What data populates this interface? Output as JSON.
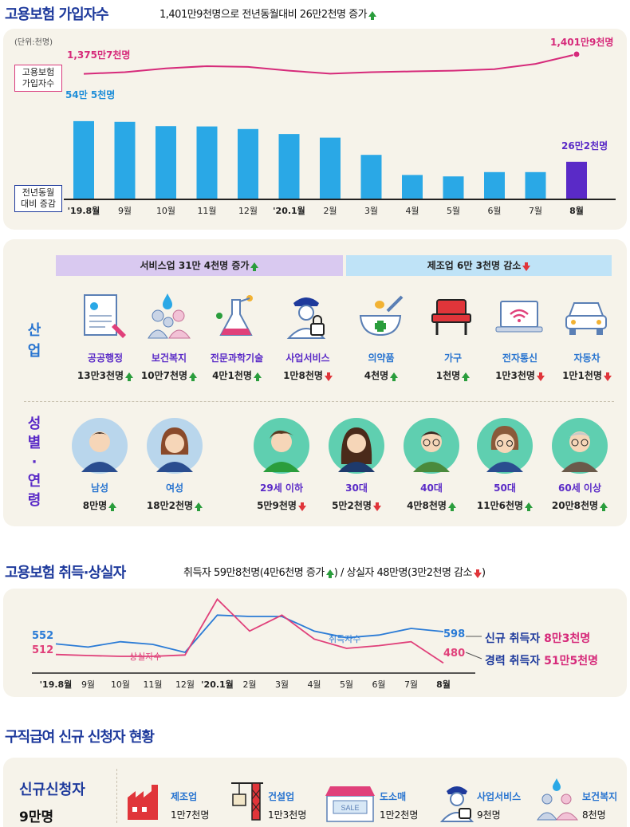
{
  "s1": {
    "title": "고용보험 가입자수",
    "subtitle": "1,401만9천명으로 전년동월대비 26만2천명 증가",
    "unit": "(단위:천명)",
    "legend_line": "고용보험\n가입자수",
    "legend_bar": "전년동월\n대비 증감",
    "first_label": "1,375만7천명",
    "last_label": "1,401만9천명",
    "bar_first_label": "54만 5천명",
    "bar_last_label": "26만2천명"
  },
  "chart_data": [
    {
      "type": "bar+line",
      "categories": [
        "'19.8월",
        "9월",
        "10월",
        "11월",
        "12월",
        "'20.1월",
        "2월",
        "3월",
        "4월",
        "5월",
        "6월",
        "7월",
        "8월"
      ],
      "series": [
        {
          "name": "전년동월 대비 증감",
          "values": [
            545,
            540,
            510,
            508,
            490,
            455,
            430,
            310,
            170,
            160,
            190,
            190,
            262
          ]
        },
        {
          "name": "고용보험 가입자수",
          "values": [
            13757,
            13780,
            13830,
            13860,
            13850,
            13800,
            13760,
            13780,
            13790,
            13800,
            13820,
            13890,
            14019
          ]
        }
      ]
    },
    {
      "type": "line",
      "categories": [
        "'19.8월",
        "9월",
        "10월",
        "11월",
        "12월",
        "'20.1월",
        "2월",
        "3월",
        "4월",
        "5월",
        "6월",
        "7월",
        "8월"
      ],
      "series": [
        {
          "name": "취득자수",
          "values": [
            552,
            540,
            560,
            550,
            520,
            660,
            655,
            655,
            600,
            575,
            585,
            610,
            598
          ]
        },
        {
          "name": "상실자수",
          "values": [
            512,
            508,
            505,
            505,
            510,
            720,
            600,
            660,
            570,
            535,
            545,
            560,
            480
          ]
        }
      ],
      "first_labels": [
        "552",
        "512"
      ],
      "last_labels": [
        "598",
        "480"
      ]
    }
  ],
  "s2": {
    "banner_service": "서비스업 31만 4천명 증가",
    "banner_mfg": "제조업 6만 3천명 감소",
    "side_industry": "산\n업",
    "side_gender": "성\n별\n·\n연\n령",
    "industries": [
      {
        "name": "공공행정",
        "value": "13만3천명",
        "dir": "up",
        "icon": "document-icon"
      },
      {
        "name": "보건복지",
        "value": "10만7천명",
        "dir": "up",
        "icon": "family-icon"
      },
      {
        "name": "전문과학기술",
        "value": "4만1천명",
        "dir": "up",
        "icon": "flask-icon"
      },
      {
        "name": "사업서비스",
        "value": "1만8천명",
        "dir": "down",
        "icon": "security-guard-icon"
      },
      {
        "name": "의약품",
        "value": "4천명",
        "dir": "up",
        "icon": "mortar-icon"
      },
      {
        "name": "가구",
        "value": "1천명",
        "dir": "up",
        "icon": "chair-icon"
      },
      {
        "name": "전자통신",
        "value": "1만3천명",
        "dir": "down",
        "icon": "laptop-wifi-icon"
      },
      {
        "name": "자동차",
        "value": "1만1천명",
        "dir": "down",
        "icon": "car-icon"
      }
    ],
    "groups": [
      {
        "name": "남성",
        "value": "8만명",
        "dir": "up",
        "icon": "man-avatar-icon"
      },
      {
        "name": "여성",
        "value": "18만2천명",
        "dir": "up",
        "icon": "woman-avatar-icon"
      },
      {
        "name": "29세 이하",
        "value": "5만9천명",
        "dir": "down",
        "icon": "young-man-avatar-icon"
      },
      {
        "name": "30대",
        "value": "5만2천명",
        "dir": "down",
        "icon": "woman-30s-avatar-icon"
      },
      {
        "name": "40대",
        "value": "4만8천명",
        "dir": "up",
        "icon": "man-40s-avatar-icon"
      },
      {
        "name": "50대",
        "value": "11만6천명",
        "dir": "up",
        "icon": "woman-50s-avatar-icon"
      },
      {
        "name": "60세 이상",
        "value": "20만8천명",
        "dir": "up",
        "icon": "elder-avatar-icon"
      }
    ]
  },
  "s3": {
    "title": "고용보험 취득·상실자",
    "subtitle": "취득자 59만8천명(4만6천명 증가",
    "subtitle2": ") / 상실자 48만명(3만2천명 감소",
    "subtitle_end": ")",
    "acq_label": "취득자수",
    "loss_label": "상실자수",
    "new_acq": "신규 취득자",
    "new_acq_val": "8만3천명",
    "career_acq": "경력 취득자",
    "career_acq_val": "51만5천명"
  },
  "s4": {
    "title": "구직급여 신규 신청자 현황",
    "left_title": "신규신청자",
    "left_value": "9만명",
    "items": [
      {
        "name": "제조업",
        "value": "1만7천명",
        "icon": "factory-icon"
      },
      {
        "name": "건설업",
        "value": "1만3천명",
        "icon": "crane-icon"
      },
      {
        "name": "도소매",
        "value": "1만2천명",
        "icon": "store-icon"
      },
      {
        "name": "사업서비스",
        "value": "9천명",
        "icon": "security-guard-icon"
      },
      {
        "name": "보건복지",
        "value": "8천명",
        "icon": "family-icon"
      }
    ],
    "sale": "SALE"
  },
  "colors": {
    "bar": "#2aa8e6",
    "bar_last": "#5a2ac7",
    "line1": "#d62a7a",
    "acq": "#2a7bd6",
    "loss": "#e0407a"
  }
}
